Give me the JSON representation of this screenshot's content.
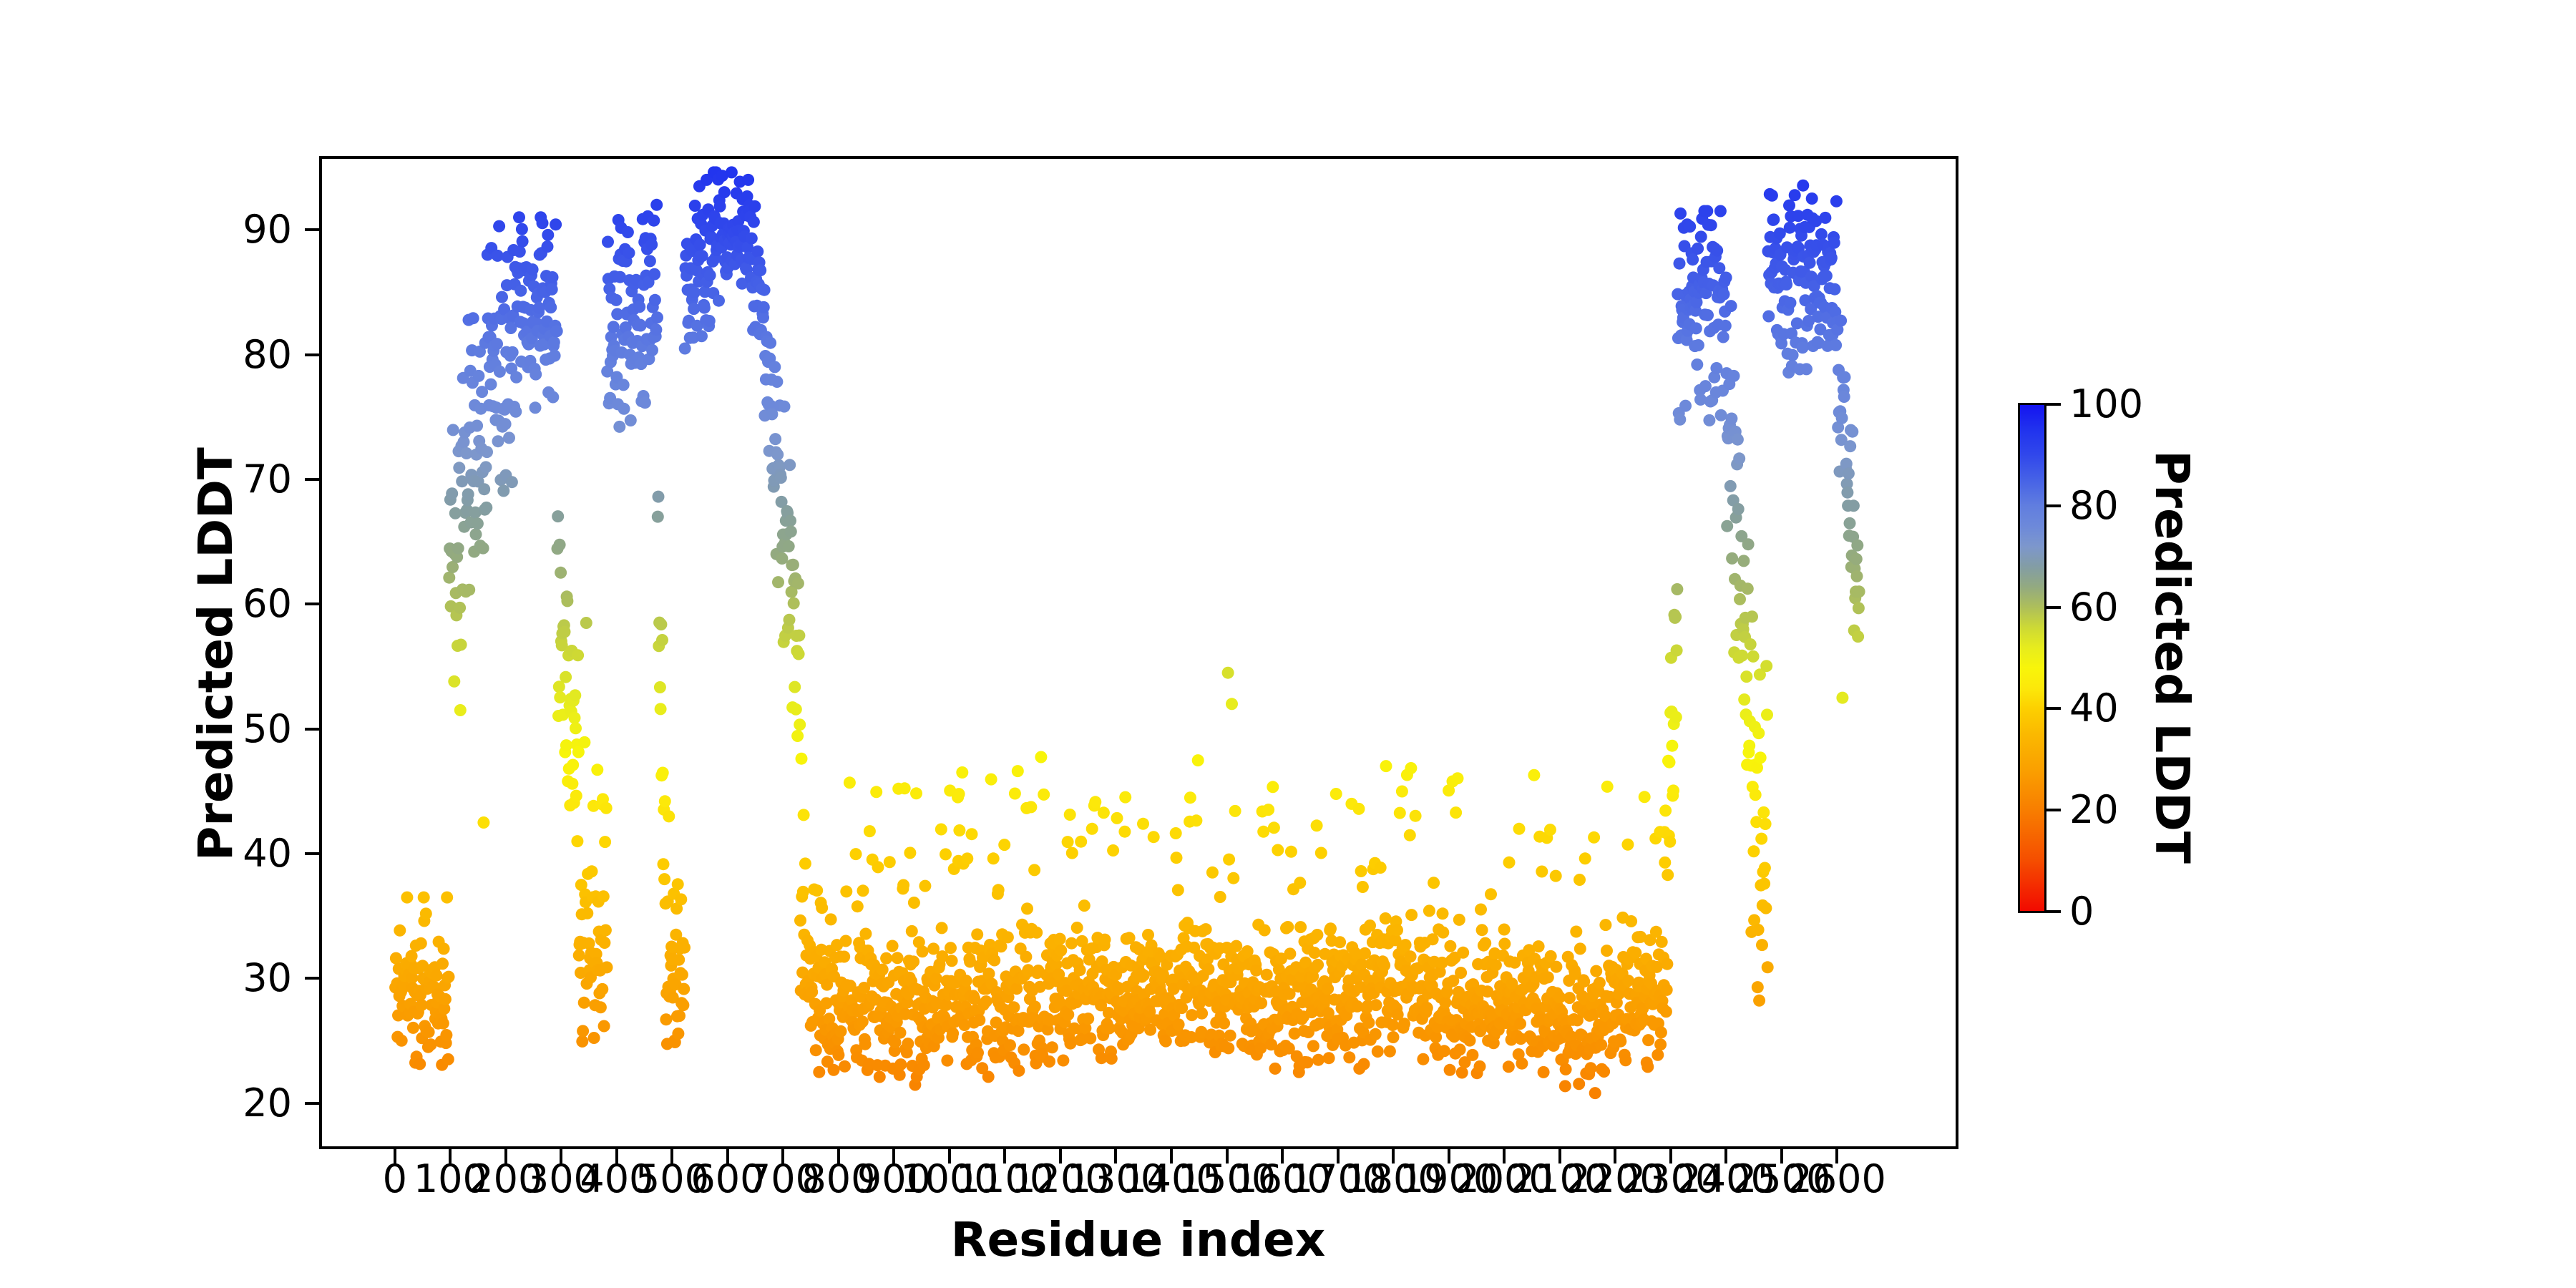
{
  "chart_data": {
    "type": "scatter",
    "title": "",
    "xlabel": "Residue index",
    "ylabel": "Predicted LDDT",
    "xlim": [
      -134,
      2814
    ],
    "ylim": [
      16.55,
      95.8
    ],
    "xticks": [
      0,
      100,
      200,
      300,
      400,
      500,
      600,
      700,
      800,
      900,
      1000,
      1100,
      1200,
      1300,
      1400,
      1500,
      1600,
      1700,
      1800,
      1900,
      2000,
      2100,
      2200,
      2300,
      2400,
      2500,
      2600
    ],
    "yticks": [
      20,
      30,
      40,
      50,
      60,
      70,
      80,
      90
    ],
    "grid": false,
    "background": "#ffffff",
    "axis_color": "#000000",
    "n_residues": 2640,
    "marker_diameter_px": 17,
    "seed": 11,
    "colorbar": {
      "label": "Predicted LDDT",
      "ticks": [
        0,
        20,
        40,
        60,
        80,
        100
      ],
      "vmin": 0,
      "vmax": 100
    },
    "colormap_stops": [
      [
        0,
        "#f20a00"
      ],
      [
        10,
        "#f54e00"
      ],
      [
        20,
        "#f87e00"
      ],
      [
        28,
        "#faa000"
      ],
      [
        35,
        "#fbb900"
      ],
      [
        40,
        "#fdd000"
      ],
      [
        44,
        "#fce80a"
      ],
      [
        48,
        "#f8f50a"
      ],
      [
        52,
        "#e7ec1d"
      ],
      [
        56,
        "#cdd935"
      ],
      [
        60,
        "#aebf5a"
      ],
      [
        64,
        "#93aa80"
      ],
      [
        68,
        "#839da4"
      ],
      [
        72,
        "#7d97cc"
      ],
      [
        76,
        "#6d89da"
      ],
      [
        80,
        "#617edf"
      ],
      [
        85,
        "#4763e6"
      ],
      [
        90,
        "#3148eb"
      ],
      [
        95,
        "#2133ee"
      ],
      [
        100,
        "#1414f0"
      ]
    ],
    "profile_segments": [
      [
        1,
        97,
        29,
        29,
        9,
        9,
        0.03,
        7,
        23,
        36.5
      ],
      [
        98,
        130,
        63,
        70,
        17,
        17,
        0,
        0,
        50,
        85
      ],
      [
        131,
        165,
        75,
        75,
        20,
        20,
        0,
        0,
        57,
        86
      ],
      [
        166,
        215,
        79,
        79,
        16,
        16,
        0,
        0,
        61,
        90.5
      ],
      [
        216,
        292,
        83,
        83,
        13,
        13,
        0,
        0,
        65,
        91
      ],
      [
        293,
        331,
        60,
        47,
        15,
        15,
        0,
        0,
        41,
        75
      ],
      [
        332,
        382,
        31,
        31,
        11,
        11,
        0.17,
        16,
        23.5,
        52
      ],
      [
        383,
        473,
        82,
        84,
        13,
        13,
        0,
        0,
        67,
        92
      ],
      [
        474,
        487,
        60,
        45,
        16,
        16,
        0,
        0,
        37,
        78
      ],
      [
        488,
        522,
        30,
        30,
        10,
        10,
        0.07,
        10,
        23,
        45
      ],
      [
        523,
        570,
        85,
        88,
        11,
        11,
        0,
        0,
        72,
        94
      ],
      [
        571,
        635,
        89.5,
        89.5,
        9,
        9,
        0,
        0,
        77,
        94.6
      ],
      [
        636,
        664,
        88,
        85,
        11,
        11,
        0,
        0,
        72,
        94
      ],
      [
        665,
        730,
        81,
        57,
        18,
        18,
        0,
        0,
        44,
        90
      ],
      [
        731,
        770,
        33,
        29,
        11,
        11,
        0.12,
        12,
        22.5,
        50
      ],
      [
        771,
        1000,
        27.5,
        27.5,
        8.5,
        8.5,
        0.09,
        14,
        20.3,
        48
      ],
      [
        1001,
        1180,
        28,
        28,
        9,
        9,
        0.12,
        16,
        20.5,
        50
      ],
      [
        1181,
        1350,
        28.5,
        28.5,
        8,
        8,
        0.1,
        14,
        20.5,
        48
      ],
      [
        1351,
        1500,
        29,
        29,
        8,
        8,
        0.1,
        15,
        21,
        55
      ],
      [
        1501,
        1700,
        28.5,
        28.5,
        8.5,
        8.5,
        0.1,
        14,
        20.5,
        48
      ],
      [
        1701,
        1900,
        29,
        29,
        9,
        9,
        0.11,
        14,
        21,
        48
      ],
      [
        1901,
        2080,
        27.5,
        27.5,
        8.5,
        8.5,
        0.1,
        15,
        20.3,
        48
      ],
      [
        2081,
        2180,
        26.5,
        26.5,
        8,
        8,
        0.08,
        17,
        20.3,
        47
      ],
      [
        2181,
        2294,
        29,
        29,
        9,
        9,
        0.08,
        14,
        21,
        48
      ],
      [
        2295,
        2312,
        42,
        60,
        16,
        16,
        0,
        0,
        33,
        76
      ],
      [
        2313,
        2400,
        84,
        84,
        13,
        13,
        0,
        0,
        64,
        91.5
      ],
      [
        2401,
        2445,
        78,
        50,
        18,
        18,
        0,
        0,
        40,
        86
      ],
      [
        2446,
        2475,
        42,
        42,
        22,
        22,
        0,
        0,
        21,
        62
      ],
      [
        2476,
        2560,
        86,
        86,
        11.5,
        11.5,
        0,
        0,
        71,
        94.2
      ],
      [
        2561,
        2600,
        87,
        87,
        11,
        11,
        0,
        0,
        74,
        94.6
      ],
      [
        2601,
        2640,
        80,
        60,
        13,
        13,
        0,
        0,
        52,
        88
      ]
    ],
    "outliers": [
      [
        118,
        51.5
      ],
      [
        160,
        42.5
      ],
      [
        345,
        58.5
      ],
      [
        1502,
        54.5
      ],
      [
        1509,
        52
      ],
      [
        2447,
        59
      ],
      [
        2610,
        52.5
      ]
    ]
  }
}
